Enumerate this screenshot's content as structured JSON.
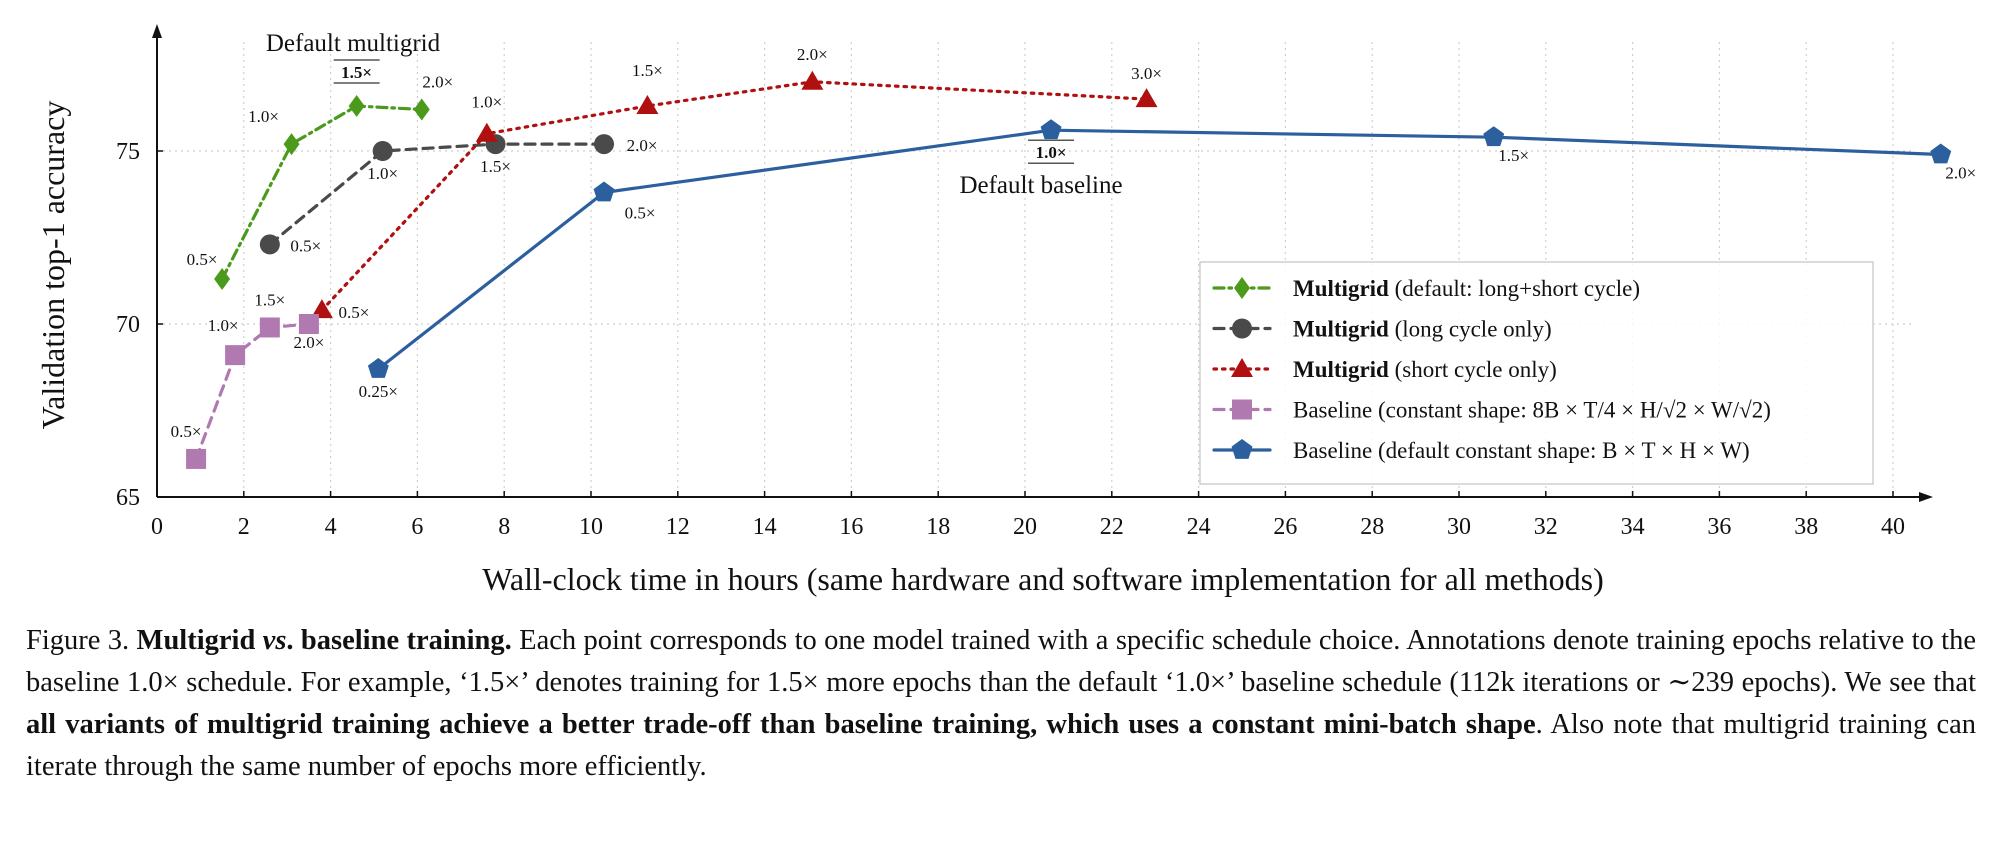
{
  "chart_data": {
    "type": "line",
    "xlabel": "Wall-clock time in hours (same hardware and software implementation for all methods)",
    "ylabel": "Validation top-1 accuracy",
    "xlim": [
      0,
      41.5
    ],
    "ylim": [
      65,
      78.5
    ],
    "xticks": [
      0,
      2,
      4,
      6,
      8,
      10,
      12,
      14,
      16,
      18,
      20,
      22,
      24,
      26,
      28,
      30,
      32,
      34,
      36,
      38,
      40
    ],
    "yticks": [
      65,
      70,
      75
    ],
    "grid": true,
    "legend_position": "lower-right",
    "series": [
      {
        "legend_bold": "Multigrid",
        "legend_rest": " (default: long+short cycle)",
        "color": "#4c9a1c",
        "marker": "diamond",
        "line": "dashdot",
        "x": [
          1.5,
          3.1,
          4.6,
          6.1
        ],
        "y": [
          71.3,
          75.2,
          76.3,
          76.2
        ],
        "labels": [
          "0.5×",
          "1.0×",
          "1.5×",
          "2.0×"
        ]
      },
      {
        "legend_bold": "Multigrid",
        "legend_rest": " (long cycle only)",
        "color": "#4a4a4a",
        "marker": "circle",
        "line": "dashed",
        "x": [
          2.6,
          5.2,
          7.8,
          10.3
        ],
        "y": [
          72.3,
          75.0,
          75.2,
          75.2
        ],
        "labels": [
          "0.5×",
          "1.0×",
          "1.5×",
          "2.0×"
        ]
      },
      {
        "legend_bold": "Multigrid",
        "legend_rest": " (short cycle only)",
        "color": "#b01010",
        "marker": "triangle",
        "line": "dotted",
        "x": [
          3.8,
          7.6,
          11.3,
          15.1,
          22.8
        ],
        "y": [
          70.4,
          75.5,
          76.3,
          77.0,
          76.5
        ],
        "labels": [
          "0.5×",
          "1.0×",
          "1.5×",
          "2.0×",
          "3.0×"
        ]
      },
      {
        "legend_bold": "",
        "legend_rest": "Baseline (constant shape: 8B × T/4 × H/√2 × W/√2)",
        "color": "#b07ab0",
        "marker": "square",
        "line": "dashed",
        "x": [
          0.9,
          1.8,
          2.6,
          3.5
        ],
        "y": [
          66.1,
          69.1,
          69.9,
          70.0
        ],
        "labels": [
          "0.5×",
          "1.0×",
          "1.5×",
          "2.0×"
        ]
      },
      {
        "legend_bold": "",
        "legend_rest": "Baseline (default constant shape: B × T × H × W)",
        "color": "#2c5f9e",
        "marker": "pentagon",
        "line": "solid",
        "x": [
          5.1,
          10.3,
          20.6,
          30.8,
          41.1
        ],
        "y": [
          68.7,
          73.8,
          75.6,
          75.4,
          74.9
        ],
        "labels": [
          "0.25×",
          "0.5×",
          "1.0×",
          "1.5×",
          "2.0×"
        ]
      }
    ],
    "annotations": [
      {
        "text": "Default multigrid"
      },
      {
        "text": "Default baseline"
      }
    ]
  },
  "caption": {
    "prefix": "Figure 3. ",
    "bold1": "Multigrid ",
    "bold1_italic": "vs",
    "bold1_end": ". baseline training.",
    "text1": " Each point corresponds to one model trained with a specific schedule choice. Annotations denote training epochs relative to the baseline 1.0× schedule. For example, ‘1.5×’ denotes training for 1.5× more epochs than the default ‘1.0×’ baseline schedule (112k iterations or ∼239 epochs). We see that ",
    "bold2": "all variants of multigrid training achieve a better trade-off than baseline training, which uses a constant mini-batch shape",
    "text2": ". Also note that multigrid training can iterate through the same number of epochs more efficiently."
  }
}
